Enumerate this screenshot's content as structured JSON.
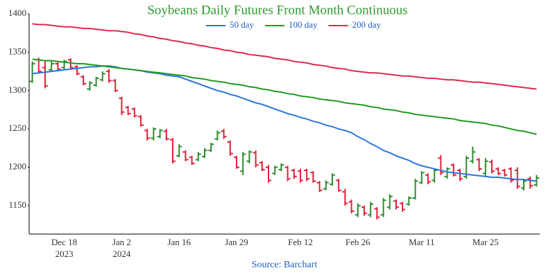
{
  "chart_data": {
    "type": "ohlc",
    "title": "Soybeans Daily Futures Front Month Continuous",
    "title_color": "#2e9a2e",
    "source": "Source: Barchart",
    "source_color": "#2060c0",
    "categories": [
      null,
      null,
      null,
      null,
      null,
      "Dec 18",
      null,
      null,
      null,
      null,
      null,
      null,
      null,
      null,
      "Jan 2",
      null,
      null,
      null,
      null,
      null,
      null,
      null,
      null,
      "Jan 16",
      null,
      null,
      null,
      null,
      null,
      null,
      null,
      null,
      "Jan 29",
      null,
      null,
      null,
      null,
      null,
      null,
      null,
      null,
      null,
      "Feb 12",
      null,
      null,
      null,
      null,
      null,
      null,
      null,
      null,
      "Feb 26",
      null,
      null,
      null,
      null,
      null,
      null,
      null,
      null,
      null,
      "Mar 11",
      null,
      null,
      null,
      null,
      null,
      null,
      null,
      null,
      null,
      "Mar 25",
      null,
      null,
      null,
      null,
      null,
      null,
      null,
      null
    ],
    "category_sublabels": [
      null,
      null,
      null,
      null,
      null,
      "2023",
      null,
      null,
      null,
      null,
      null,
      null,
      null,
      null,
      "2024",
      null,
      null,
      null,
      null,
      null,
      null,
      null,
      null,
      null,
      null,
      null,
      null,
      null,
      null,
      null,
      null,
      null,
      null,
      null,
      null,
      null,
      null,
      null,
      null,
      null,
      null,
      null,
      null,
      null,
      null,
      null,
      null,
      null,
      null,
      null,
      null,
      null,
      null,
      null,
      null,
      null,
      null,
      null,
      null,
      null,
      null,
      null,
      null,
      null,
      null,
      null,
      null,
      null,
      null,
      null,
      null,
      null,
      null,
      null,
      null,
      null,
      null,
      null,
      null,
      null
    ],
    "ohlc": {
      "up_color": "#2e8b2e",
      "down_color": "#e0203a",
      "open": [
        1312,
        1340,
        1330,
        1327,
        1335,
        1330,
        1340,
        1331,
        1318,
        1302,
        1307,
        1314,
        1325,
        1313,
        1290,
        1278,
        1276,
        1266,
        1248,
        1238,
        1240,
        1247,
        1236,
        1215,
        1220,
        1213,
        1210,
        1214,
        1222,
        1237,
        1247,
        1233,
        1213,
        1195,
        1208,
        1219,
        1206,
        1200,
        1192,
        1197,
        1200,
        1196,
        1195,
        1196,
        1193,
        1180,
        1172,
        1178,
        1183,
        1168,
        1155,
        1138,
        1148,
        1138,
        1146,
        1138,
        1148,
        1156,
        1153,
        1152,
        1160,
        1180,
        1190,
        1183,
        1212,
        1188,
        1203,
        1196,
        1188,
        1208,
        1210,
        1192,
        1207,
        1198,
        1196,
        1198,
        1196,
        1173,
        1185,
        1177
      ],
      "high": [
        1338,
        1343,
        1338,
        1338,
        1337,
        1340,
        1342,
        1333,
        1320,
        1312,
        1318,
        1325,
        1328,
        1315,
        1292,
        1280,
        1278,
        1268,
        1250,
        1252,
        1250,
        1250,
        1238,
        1230,
        1222,
        1215,
        1220,
        1225,
        1232,
        1248,
        1250,
        1235,
        1215,
        1220,
        1222,
        1222,
        1208,
        1203,
        1202,
        1205,
        1202,
        1198,
        1198,
        1198,
        1195,
        1182,
        1183,
        1192,
        1185,
        1172,
        1158,
        1153,
        1150,
        1155,
        1148,
        1160,
        1165,
        1158,
        1155,
        1162,
        1185,
        1195,
        1192,
        1198,
        1216,
        1200,
        1205,
        1198,
        1215,
        1227,
        1212,
        1212,
        1210,
        1200,
        1198,
        1200,
        1200,
        1185,
        1188,
        1190
      ],
      "low": [
        1310,
        1322,
        1303,
        1325,
        1325,
        1328,
        1328,
        1320,
        1307,
        1300,
        1305,
        1312,
        1310,
        1298,
        1268,
        1268,
        1265,
        1253,
        1235,
        1235,
        1238,
        1235,
        1205,
        1213,
        1208,
        1203,
        1208,
        1212,
        1220,
        1235,
        1237,
        1215,
        1198,
        1190,
        1205,
        1200,
        1195,
        1180,
        1190,
        1195,
        1182,
        1185,
        1180,
        1182,
        1180,
        1168,
        1170,
        1176,
        1168,
        1150,
        1140,
        1135,
        1137,
        1135,
        1132,
        1135,
        1145,
        1145,
        1142,
        1150,
        1158,
        1178,
        1178,
        1180,
        1190,
        1185,
        1188,
        1182,
        1185,
        1205,
        1195,
        1188,
        1192,
        1190,
        1188,
        1180,
        1172,
        1170,
        1172,
        1175
      ],
      "close": [
        1335,
        1325,
        1306,
        1335,
        1328,
        1338,
        1330,
        1322,
        1309,
        1310,
        1316,
        1322,
        1313,
        1300,
        1272,
        1270,
        1267,
        1255,
        1238,
        1250,
        1248,
        1237,
        1208,
        1227,
        1210,
        1205,
        1217,
        1222,
        1230,
        1245,
        1240,
        1218,
        1200,
        1217,
        1220,
        1203,
        1197,
        1183,
        1200,
        1203,
        1185,
        1188,
        1183,
        1185,
        1182,
        1170,
        1180,
        1190,
        1170,
        1153,
        1143,
        1150,
        1140,
        1152,
        1135,
        1157,
        1162,
        1148,
        1145,
        1160,
        1182,
        1193,
        1181,
        1196,
        1193,
        1198,
        1190,
        1185,
        1212,
        1220,
        1198,
        1208,
        1195,
        1192,
        1190,
        1183,
        1175,
        1182,
        1176,
        1186
      ]
    },
    "lines": [
      {
        "name": "50 day",
        "color": "#2a74dc",
        "values": [
          1322,
          1323,
          1324,
          1325,
          1326,
          1327,
          1328,
          1329,
          1330,
          1331,
          1331,
          1332,
          1332,
          1331,
          1329,
          1328,
          1327,
          1326,
          1324,
          1323,
          1322,
          1320,
          1319,
          1318,
          1315,
          1312,
          1309,
          1306,
          1303,
          1300,
          1298,
          1295,
          1293,
          1290,
          1287,
          1284,
          1282,
          1279,
          1276,
          1273,
          1270,
          1268,
          1265,
          1263,
          1260,
          1258,
          1255,
          1253,
          1250,
          1248,
          1245,
          1240,
          1236,
          1231,
          1227,
          1222,
          1219,
          1215,
          1212,
          1209,
          1205,
          1202,
          1200,
          1198,
          1196,
          1194,
          1193,
          1192,
          1191,
          1190,
          1189,
          1188,
          1187,
          1187,
          1186,
          1185,
          1184,
          1184,
          1183,
          1182
        ]
      },
      {
        "name": "100 day",
        "color": "#1f9a1f",
        "values": [
          1341,
          1340,
          1339,
          1339,
          1338,
          1337,
          1336,
          1335,
          1335,
          1334,
          1333,
          1332,
          1331,
          1330,
          1329,
          1328,
          1327,
          1326,
          1325,
          1324,
          1323,
          1322,
          1321,
          1320,
          1319,
          1317,
          1316,
          1315,
          1313,
          1312,
          1311,
          1309,
          1308,
          1307,
          1305,
          1304,
          1302,
          1301,
          1299,
          1298,
          1296,
          1295,
          1293,
          1292,
          1291,
          1289,
          1288,
          1287,
          1286,
          1284,
          1283,
          1282,
          1281,
          1279,
          1278,
          1276,
          1275,
          1274,
          1272,
          1271,
          1269,
          1268,
          1267,
          1266,
          1265,
          1264,
          1263,
          1261,
          1260,
          1259,
          1258,
          1257,
          1255,
          1254,
          1252,
          1250,
          1248,
          1247,
          1245,
          1243
        ]
      },
      {
        "name": "200 day",
        "color": "#dc2a4a",
        "values": [
          1387,
          1386,
          1386,
          1385,
          1384,
          1383,
          1383,
          1382,
          1381,
          1381,
          1380,
          1379,
          1378,
          1378,
          1377,
          1376,
          1374,
          1373,
          1371,
          1370,
          1368,
          1367,
          1365,
          1364,
          1362,
          1361,
          1359,
          1358,
          1356,
          1355,
          1353,
          1352,
          1350,
          1349,
          1347,
          1346,
          1345,
          1344,
          1342,
          1341,
          1340,
          1338,
          1337,
          1336,
          1334,
          1333,
          1332,
          1330,
          1329,
          1328,
          1326,
          1325,
          1324,
          1323,
          1323,
          1322,
          1321,
          1320,
          1319,
          1319,
          1318,
          1317,
          1316,
          1316,
          1315,
          1314,
          1314,
          1313,
          1312,
          1311,
          1311,
          1310,
          1309,
          1308,
          1307,
          1306,
          1305,
          1304,
          1303,
          1302
        ]
      }
    ],
    "ylim": [
      1113,
      1400
    ],
    "yticks": [
      1150,
      1200,
      1250,
      1300,
      1350,
      1400
    ],
    "grid": false
  }
}
